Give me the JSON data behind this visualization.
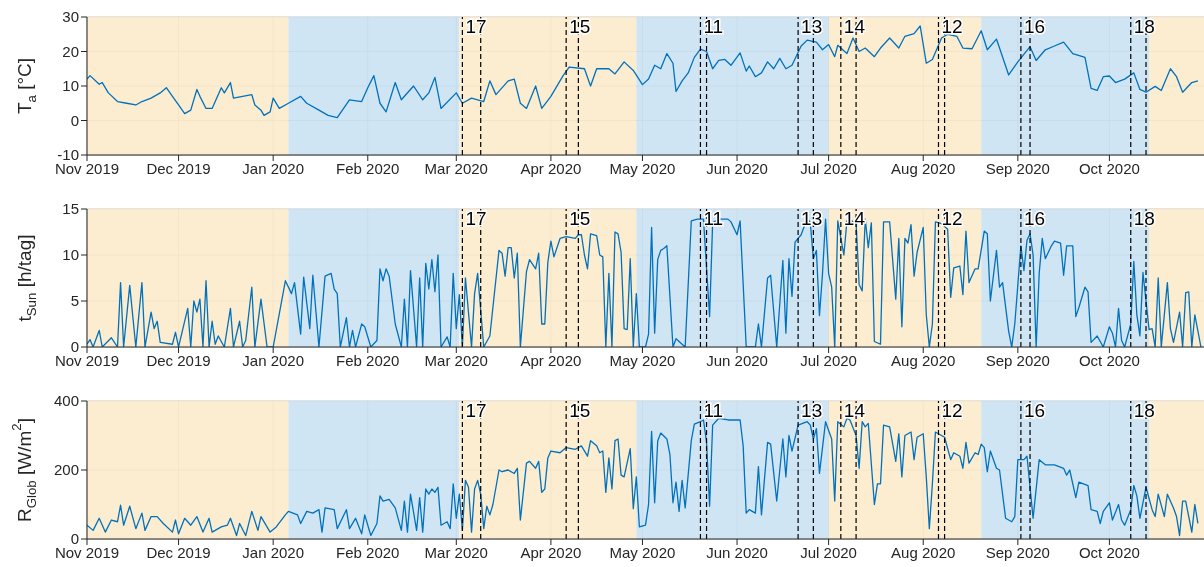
{
  "chart_data": [
    {
      "type": "line",
      "ylabel": "T$_{a}$ [°C]",
      "color": "#0072bd",
      "grid": true,
      "ylim": [
        -10,
        30
      ],
      "yticks": [
        -10,
        0,
        10,
        20,
        30
      ],
      "xlim": [
        "2019-11-01",
        "2020-11-01"
      ],
      "xticks": [
        {
          "value": "2019-11-01",
          "label": "Nov 2019"
        },
        {
          "value": "2019-12-01",
          "label": "Dec 2019"
        },
        {
          "value": "2020-01-01",
          "label": "Jan 2020"
        },
        {
          "value": "2020-02-01",
          "label": "Feb 2020"
        },
        {
          "value": "2020-03-01",
          "label": "Mar 2020"
        },
        {
          "value": "2020-04-01",
          "label": "Apr 2020"
        },
        {
          "value": "2020-05-01",
          "label": "May 2020"
        },
        {
          "value": "2020-06-01",
          "label": "Jun 2020"
        },
        {
          "value": "2020-07-01",
          "label": "Jul 2020"
        },
        {
          "value": "2020-08-01",
          "label": "Aug 2020"
        },
        {
          "value": "2020-09-01",
          "label": "Sep 2020"
        },
        {
          "value": "2020-10-01",
          "label": "Oct 2020"
        }
      ],
      "bands": [
        {
          "axis": "x",
          "from": "2019-11-01",
          "to": "2020-01-06",
          "color": "#fbe9c8"
        },
        {
          "axis": "x",
          "from": "2020-01-06",
          "to": "2020-03-02",
          "color": "#c8e0f2"
        },
        {
          "axis": "x",
          "from": "2020-03-02",
          "to": "2020-04-29",
          "color": "#fbe9c8"
        },
        {
          "axis": "x",
          "from": "2020-04-29",
          "to": "2020-07-01",
          "color": "#c8e0f2"
        },
        {
          "axis": "x",
          "from": "2020-07-01",
          "to": "2020-08-20",
          "color": "#fbe9c8"
        },
        {
          "axis": "x",
          "from": "2020-08-20",
          "to": "2020-10-14",
          "color": "#c8e0f2"
        },
        {
          "axis": "x",
          "from": "2020-10-14",
          "to": "2020-11-01",
          "color": "#fbe9c8"
        }
      ],
      "ref_lines": [
        {
          "axis": "x",
          "value": "2020-03-03",
          "label": "17",
          "line_style": "dashed"
        },
        {
          "axis": "x",
          "value": "2020-03-09",
          "line_style": "dashed"
        },
        {
          "axis": "x",
          "value": "2020-04-06",
          "label": "15",
          "line_style": "dashed"
        },
        {
          "axis": "x",
          "value": "2020-04-10",
          "line_style": "dashed"
        },
        {
          "axis": "x",
          "value": "2020-05-20",
          "label": "11",
          "line_style": "dashed"
        },
        {
          "axis": "x",
          "value": "2020-05-22",
          "line_style": "dashed"
        },
        {
          "axis": "x",
          "value": "2020-06-21",
          "label": "13",
          "line_style": "dashed"
        },
        {
          "axis": "x",
          "value": "2020-06-26",
          "line_style": "dashed"
        },
        {
          "axis": "x",
          "value": "2020-07-05",
          "label": "14",
          "line_style": "dashed"
        },
        {
          "axis": "x",
          "value": "2020-07-10",
          "line_style": "dashed"
        },
        {
          "axis": "x",
          "value": "2020-08-06",
          "label": "12",
          "line_style": "dashed"
        },
        {
          "axis": "x",
          "value": "2020-08-08",
          "line_style": "dashed"
        },
        {
          "axis": "x",
          "value": "2020-09-02",
          "label": "16",
          "line_style": "dashed"
        },
        {
          "axis": "x",
          "value": "2020-09-05",
          "line_style": "dashed"
        },
        {
          "axis": "x",
          "value": "2020-10-08",
          "label": "18",
          "line_style": "dashed"
        },
        {
          "axis": "x",
          "value": "2020-10-13",
          "line_style": "dashed"
        }
      ],
      "x": [
        "2019-11-01",
        "2019-11-02",
        "2019-11-05",
        "2019-11-06",
        "2019-11-08",
        "2019-11-11",
        "2019-11-14",
        "2019-11-17",
        "2019-11-19",
        "2019-11-22",
        "2019-11-25",
        "2019-11-27",
        "2019-11-29",
        "2019-12-01",
        "2019-12-03",
        "2019-12-05",
        "2019-12-07",
        "2019-12-08",
        "2019-12-10",
        "2019-12-12",
        "2019-12-15",
        "2019-12-16",
        "2019-12-18",
        "2019-12-19",
        "2019-12-22",
        "2019-12-25",
        "2019-12-26",
        "2019-12-28",
        "2019-12-29",
        "2019-12-31",
        "2020-01-01",
        "2020-01-03",
        "2020-01-06",
        "2020-01-10",
        "2020-01-12",
        "2020-01-16",
        "2020-01-19",
        "2020-01-22",
        "2020-01-26",
        "2020-01-30",
        "2020-02-01",
        "2020-02-03",
        "2020-02-05",
        "2020-02-07",
        "2020-02-10",
        "2020-02-12",
        "2020-02-16",
        "2020-02-19",
        "2020-02-21",
        "2020-02-23",
        "2020-02-25",
        "2020-03-01",
        "2020-03-03",
        "2020-03-06",
        "2020-03-10",
        "2020-03-12",
        "2020-03-14",
        "2020-03-18",
        "2020-03-20",
        "2020-03-22",
        "2020-03-24",
        "2020-03-27",
        "2020-03-29",
        "2020-04-01",
        "2020-04-05",
        "2020-04-07",
        "2020-04-12",
        "2020-04-14",
        "2020-04-16",
        "2020-04-20",
        "2020-04-22",
        "2020-04-25",
        "2020-04-28",
        "2020-05-01",
        "2020-05-03",
        "2020-05-05",
        "2020-05-07",
        "2020-05-09",
        "2020-05-11",
        "2020-05-12",
        "2020-05-14",
        "2020-05-16",
        "2020-05-18",
        "2020-05-20",
        "2020-05-22",
        "2020-05-24",
        "2020-05-26",
        "2020-05-28",
        "2020-05-30",
        "2020-06-02",
        "2020-06-04",
        "2020-06-05",
        "2020-06-07",
        "2020-06-09",
        "2020-06-11",
        "2020-06-13",
        "2020-06-15",
        "2020-06-17",
        "2020-06-19",
        "2020-06-22",
        "2020-06-24",
        "2020-06-27",
        "2020-06-29",
        "2020-07-01",
        "2020-07-03",
        "2020-07-04",
        "2020-07-07",
        "2020-07-09",
        "2020-07-11",
        "2020-07-13",
        "2020-07-16",
        "2020-07-18",
        "2020-07-21",
        "2020-07-24",
        "2020-07-26",
        "2020-07-29",
        "2020-07-31",
        "2020-08-02",
        "2020-08-04",
        "2020-08-07",
        "2020-08-09",
        "2020-08-12",
        "2020-08-14",
        "2020-08-17",
        "2020-08-20",
        "2020-08-22",
        "2020-08-25",
        "2020-08-29",
        "2020-09-01",
        "2020-09-05",
        "2020-09-07",
        "2020-09-10",
        "2020-09-13",
        "2020-09-16",
        "2020-09-19",
        "2020-09-23",
        "2020-09-25",
        "2020-09-27",
        "2020-09-29",
        "2020-10-01",
        "2020-10-03",
        "2020-10-06",
        "2020-10-09",
        "2020-10-11",
        "2020-10-13",
        "2020-10-16",
        "2020-10-18",
        "2020-10-21",
        "2020-10-23",
        "2020-10-25",
        "2020-10-28",
        "2020-10-30"
      ],
      "values": [
        12,
        13,
        10.5,
        11,
        8,
        5.5,
        5,
        4.5,
        5.5,
        6.5,
        8,
        9.5,
        7,
        4.5,
        2,
        3,
        9,
        7,
        3.5,
        3.5,
        9.5,
        8,
        11,
        6.5,
        7,
        7.5,
        4.5,
        3,
        1.5,
        2.5,
        6.5,
        3.5,
        5,
        7,
        5,
        3,
        1.5,
        0.8,
        6,
        5.5,
        9.5,
        13,
        5,
        2.5,
        11,
        6,
        10,
        6,
        8,
        12.5,
        3.5,
        8,
        5,
        6.5,
        5.5,
        11.5,
        7.5,
        11.5,
        12,
        5,
        3.5,
        10,
        3.5,
        7,
        13,
        15.5,
        15,
        10,
        15,
        15,
        13.5,
        17,
        14.5,
        10.4,
        12,
        16,
        15,
        19.4,
        16.6,
        8.4,
        11.5,
        13.8,
        18.3,
        20.7,
        20,
        15,
        17.4,
        17.7,
        16,
        19.6,
        14.3,
        15.8,
        12.7,
        13.8,
        17,
        15,
        18,
        15,
        16,
        21.6,
        23.3,
        22.7,
        20.5,
        22,
        18.5,
        21.8,
        19.4,
        23.9,
        20,
        21,
        18.5,
        21,
        23.9,
        21,
        24.4,
        25.2,
        27.4,
        16.6,
        17.7,
        23.9,
        25,
        24.4,
        21,
        20.8,
        26,
        20.5,
        23.6,
        13.2,
        17,
        21.4,
        17.4,
        20.5,
        21.6,
        22.7,
        19.4,
        18.3,
        9.3,
        8.7,
        12.7,
        12.9,
        11,
        12,
        13.8,
        9,
        8.2,
        9.9,
        8.7,
        15,
        12.7,
        8.2,
        11,
        11.5
      ]
    },
    {
      "type": "line",
      "ylabel": "t$_{Sun}$ [h/tag]",
      "color": "#0072bd",
      "grid": true,
      "ylim": [
        0,
        15
      ],
      "yticks": [
        0,
        5,
        10,
        15
      ],
      "xlim": [
        "2019-11-01",
        "2020-11-01"
      ],
      "xticks": [
        {
          "value": "2019-11-01",
          "label": "Nov 2019"
        },
        {
          "value": "2019-12-01",
          "label": "Dec 2019"
        },
        {
          "value": "2020-01-01",
          "label": "Jan 2020"
        },
        {
          "value": "2020-02-01",
          "label": "Feb 2020"
        },
        {
          "value": "2020-03-01",
          "label": "Mar 2020"
        },
        {
          "value": "2020-04-01",
          "label": "Apr 2020"
        },
        {
          "value": "2020-05-01",
          "label": "May 2020"
        },
        {
          "value": "2020-06-01",
          "label": "Jun 2020"
        },
        {
          "value": "2020-07-01",
          "label": "Jul 2020"
        },
        {
          "value": "2020-08-01",
          "label": "Aug 2020"
        },
        {
          "value": "2020-09-01",
          "label": "Sep 2020"
        },
        {
          "value": "2020-10-01",
          "label": "Oct 2020"
        }
      ],
      "bands": [
        {
          "axis": "x",
          "from": "2019-11-01",
          "to": "2020-01-06",
          "color": "#fbe9c8"
        },
        {
          "axis": "x",
          "from": "2020-01-06",
          "to": "2020-03-02",
          "color": "#c8e0f2"
        },
        {
          "axis": "x",
          "from": "2020-03-02",
          "to": "2020-04-29",
          "color": "#fbe9c8"
        },
        {
          "axis": "x",
          "from": "2020-04-29",
          "to": "2020-07-01",
          "color": "#c8e0f2"
        },
        {
          "axis": "x",
          "from": "2020-07-01",
          "to": "2020-08-20",
          "color": "#fbe9c8"
        },
        {
          "axis": "x",
          "from": "2020-08-20",
          "to": "2020-10-14",
          "color": "#c8e0f2"
        },
        {
          "axis": "x",
          "from": "2020-10-14",
          "to": "2020-11-01",
          "color": "#fbe9c8"
        }
      ],
      "ref_lines": [
        {
          "axis": "x",
          "value": "2020-03-03",
          "label": "17",
          "line_style": "dashed"
        },
        {
          "axis": "x",
          "value": "2020-03-09",
          "line_style": "dashed"
        },
        {
          "axis": "x",
          "value": "2020-04-06",
          "label": "15",
          "line_style": "dashed"
        },
        {
          "axis": "x",
          "value": "2020-04-10",
          "line_style": "dashed"
        },
        {
          "axis": "x",
          "value": "2020-05-20",
          "label": "11",
          "line_style": "dashed"
        },
        {
          "axis": "x",
          "value": "2020-05-22",
          "line_style": "dashed"
        },
        {
          "axis": "x",
          "value": "2020-06-21",
          "label": "13",
          "line_style": "dashed"
        },
        {
          "axis": "x",
          "value": "2020-06-26",
          "line_style": "dashed"
        },
        {
          "axis": "x",
          "value": "2020-07-05",
          "label": "14",
          "line_style": "dashed"
        },
        {
          "axis": "x",
          "value": "2020-07-10",
          "line_style": "dashed"
        },
        {
          "axis": "x",
          "value": "2020-08-06",
          "label": "12",
          "line_style": "dashed"
        },
        {
          "axis": "x",
          "value": "2020-08-08",
          "line_style": "dashed"
        },
        {
          "axis": "x",
          "value": "2020-09-02",
          "label": "16",
          "line_style": "dashed"
        },
        {
          "axis": "x",
          "value": "2020-09-05",
          "line_style": "dashed"
        },
        {
          "axis": "x",
          "value": "2020-10-08",
          "label": "18",
          "line_style": "dashed"
        },
        {
          "axis": "x",
          "value": "2020-10-13",
          "line_style": "dashed"
        }
      ],
      "x": [
        "2019-11-01",
        "2019-11-02",
        "2019-11-03",
        "2019-11-05",
        "2019-11-06",
        "2019-11-09",
        "2019-11-11",
        "2019-11-12",
        "2019-11-13",
        "2019-11-15",
        "2019-11-17",
        "2019-11-19",
        "2019-11-20",
        "2019-11-22",
        "2019-11-23",
        "2019-11-24",
        "2019-11-25",
        "2019-11-29",
        "2019-11-30",
        "2019-12-01",
        "2019-12-04",
        "2019-12-05",
        "2019-12-06",
        "2019-12-07",
        "2019-12-08",
        "2019-12-09",
        "2019-12-10",
        "2019-12-11",
        "2019-12-12",
        "2019-12-13",
        "2019-12-14",
        "2019-12-16",
        "2019-12-18",
        "2019-12-19",
        "2019-12-21",
        "2019-12-22",
        "2019-12-23",
        "2019-12-25",
        "2019-12-26",
        "2019-12-28",
        "2019-12-30",
        "2020-01-01",
        "2020-01-05",
        "2020-01-07",
        "2020-01-08",
        "2020-01-10",
        "2020-01-11",
        "2020-01-13",
        "2020-01-14",
        "2020-01-16",
        "2020-01-18",
        "2020-01-20",
        "2020-01-21",
        "2020-01-22",
        "2020-01-23",
        "2020-01-25",
        "2020-01-26",
        "2020-01-27",
        "2020-01-28",
        "2020-01-30",
        "2020-01-31",
        "2020-02-02",
        "2020-02-04",
        "2020-02-05",
        "2020-02-06",
        "2020-02-07",
        "2020-02-08",
        "2020-02-10",
        "2020-02-12",
        "2020-02-13",
        "2020-02-14",
        "2020-02-15",
        "2020-02-17",
        "2020-02-18",
        "2020-02-19",
        "2020-02-20",
        "2020-02-21",
        "2020-02-22",
        "2020-02-23",
        "2020-02-24",
        "2020-02-25",
        "2020-02-27",
        "2020-02-28",
        "2020-02-29",
        "2020-03-01",
        "2020-03-02",
        "2020-03-03",
        "2020-03-04",
        "2020-03-06",
        "2020-03-07",
        "2020-03-08",
        "2020-03-10",
        "2020-03-12",
        "2020-03-15",
        "2020-03-16",
        "2020-03-17",
        "2020-03-18",
        "2020-03-19",
        "2020-03-20",
        "2020-03-21",
        "2020-03-22",
        "2020-03-24",
        "2020-03-25",
        "2020-03-27",
        "2020-03-28",
        "2020-03-29",
        "2020-03-30",
        "2020-03-31",
        "2020-04-01",
        "2020-04-02",
        "2020-04-04",
        "2020-04-06",
        "2020-04-09",
        "2020-04-10",
        "2020-04-11",
        "2020-04-12",
        "2020-04-13",
        "2020-04-14",
        "2020-04-16",
        "2020-04-17",
        "2020-04-18",
        "2020-04-19",
        "2020-04-20",
        "2020-04-21",
        "2020-04-22",
        "2020-04-23",
        "2020-04-24",
        "2020-04-25",
        "2020-04-26",
        "2020-04-27",
        "2020-04-28",
        "2020-04-29",
        "2020-04-30",
        "2020-05-02",
        "2020-05-03",
        "2020-05-04",
        "2020-05-05",
        "2020-05-06",
        "2020-05-07",
        "2020-05-08",
        "2020-05-09",
        "2020-05-11",
        "2020-05-12",
        "2020-05-15",
        "2020-05-17",
        "2020-05-19",
        "2020-05-21",
        "2020-05-23",
        "2020-05-24",
        "2020-05-26",
        "2020-05-29",
        "2020-05-30",
        "2020-06-01",
        "2020-06-02",
        "2020-06-04",
        "2020-06-07",
        "2020-06-08",
        "2020-06-09",
        "2020-06-11",
        "2020-06-12",
        "2020-06-14",
        "2020-06-16",
        "2020-06-17",
        "2020-06-18",
        "2020-06-19",
        "2020-06-20",
        "2020-06-22",
        "2020-06-24",
        "2020-06-25",
        "2020-06-26",
        "2020-06-27",
        "2020-06-28",
        "2020-06-29",
        "2020-06-30",
        "2020-07-01",
        "2020-07-02",
        "2020-07-03",
        "2020-07-04",
        "2020-07-06",
        "2020-07-07",
        "2020-07-08",
        "2020-07-10",
        "2020-07-11",
        "2020-07-12",
        "2020-07-13",
        "2020-07-14",
        "2020-07-15",
        "2020-07-16",
        "2020-07-18",
        "2020-07-19",
        "2020-07-21",
        "2020-07-23",
        "2020-07-24",
        "2020-07-25",
        "2020-07-26",
        "2020-07-27",
        "2020-07-28",
        "2020-07-29",
        "2020-07-30",
        "2020-08-01",
        "2020-08-02",
        "2020-08-03",
        "2020-08-04",
        "2020-08-05",
        "2020-08-07",
        "2020-08-09",
        "2020-08-10",
        "2020-08-11",
        "2020-08-13",
        "2020-08-14",
        "2020-08-15",
        "2020-08-16",
        "2020-08-18",
        "2020-08-19",
        "2020-08-21",
        "2020-08-22",
        "2020-08-23",
        "2020-08-25",
        "2020-08-26",
        "2020-08-27",
        "2020-08-29",
        "2020-08-30",
        "2020-08-31",
        "2020-09-02",
        "2020-09-03",
        "2020-09-04",
        "2020-09-05",
        "2020-09-06",
        "2020-09-07",
        "2020-09-08",
        "2020-09-09",
        "2020-09-10",
        "2020-09-12",
        "2020-09-13",
        "2020-09-15",
        "2020-09-16",
        "2020-09-17",
        "2020-09-19",
        "2020-09-20",
        "2020-09-21",
        "2020-09-23",
        "2020-09-24",
        "2020-09-25",
        "2020-09-27",
        "2020-09-29",
        "2020-10-01",
        "2020-10-02",
        "2020-10-03",
        "2020-10-04",
        "2020-10-05",
        "2020-10-06",
        "2020-10-08",
        "2020-10-09",
        "2020-10-10",
        "2020-10-11",
        "2020-10-12",
        "2020-10-14",
        "2020-10-15",
        "2020-10-16",
        "2020-10-17",
        "2020-10-18",
        "2020-10-20",
        "2020-10-21",
        "2020-10-22",
        "2020-10-24",
        "2020-10-25",
        "2020-10-26",
        "2020-10-27",
        "2020-10-28",
        "2020-10-29",
        "2020-10-31"
      ],
      "values": [
        0.3,
        0.8,
        0,
        1.8,
        0,
        1,
        0,
        7,
        0,
        6.7,
        0,
        7,
        0,
        3.8,
        2,
        2.8,
        0.5,
        0.3,
        1.6,
        0,
        4.2,
        0,
        5,
        3.8,
        5.2,
        0,
        7.2,
        0,
        2.8,
        0.3,
        1.2,
        0,
        4.2,
        0,
        2.8,
        0,
        0.7,
        6.5,
        0,
        5.2,
        0,
        0,
        7.2,
        5.8,
        7,
        1.4,
        7.6,
        2,
        7.8,
        0,
        7.7,
        8,
        6.3,
        5.8,
        0,
        3.2,
        0,
        1.8,
        0,
        2.5,
        2.2,
        0,
        0.7,
        8.5,
        7.2,
        8.5,
        7.7,
        2.5,
        0,
        5.2,
        0,
        8.3,
        0,
        7.5,
        0,
        9.1,
        6.3,
        9.5,
        6,
        10,
        0,
        1.1,
        0,
        8,
        2,
        5.7,
        0,
        7.5,
        0,
        5.8,
        8,
        0,
        1.2,
        10.5,
        10.2,
        7.7,
        10.8,
        10.8,
        7.5,
        10.2,
        0,
        8.2,
        9.5,
        8.5,
        10.2,
        2.5,
        2.5,
        9.2,
        11.5,
        9.8,
        11.8,
        12,
        11.8,
        12.2,
        12.2,
        10,
        8.5,
        12.3,
        12.1,
        10,
        9.8,
        0,
        8,
        0,
        12.5,
        12.3,
        10.3,
        2,
        1.9,
        9.6,
        0,
        5.8,
        0,
        0,
        1.4,
        13,
        1.5,
        9.5,
        10.5,
        10.7,
        11,
        0,
        0.9,
        0,
        13.7,
        13.9,
        13.9,
        3.3,
        13.5,
        13.9,
        13.9,
        13.6,
        12.2,
        13.7,
        0,
        0,
        2.5,
        0,
        7.5,
        7.8,
        0,
        9.4,
        1.5,
        9.6,
        5.5,
        11.4,
        12.2,
        14,
        13.5,
        9.6,
        10.5,
        3.4,
        8,
        13.9,
        8,
        6.5,
        0,
        13.7,
        10,
        13.7,
        13.8,
        13.5,
        6.8,
        6.1,
        13.9,
        10.8,
        13.5,
        0.6,
        0.3,
        13.6,
        13.6,
        5.2,
        11.8,
        2.2,
        11.8,
        11.3,
        13.3,
        7.7,
        10.3,
        13,
        3.5,
        0,
        2.5,
        13.6,
        13.4,
        12.8,
        5.4,
        8.6,
        8.8,
        5.7,
        12.6,
        7,
        8.5,
        8.5,
        12.6,
        12.3,
        5,
        10.5,
        6.5,
        7,
        1.7,
        0,
        2.5,
        11,
        8.3,
        11.6,
        12.3,
        10,
        0,
        8,
        11.8,
        9.6,
        11,
        11.5,
        11.3,
        7.8,
        11,
        11,
        3.3,
        4.3,
        6.5,
        6,
        0.5,
        1.2,
        0,
        2.2,
        1.5,
        0,
        4.2,
        0.7,
        0,
        2.5,
        9.3,
        3.5,
        1.2,
        8.1,
        1.9,
        2,
        0,
        7.5,
        0,
        7,
        2,
        0.5,
        3.8,
        0,
        5.9,
        6,
        0,
        3.5,
        0
      ]
    },
    {
      "type": "line",
      "ylabel": "R$_{Glob}$ [W/m$^{2}$]",
      "color": "#0072bd",
      "grid": true,
      "ylim": [
        0,
        400
      ],
      "yticks": [
        0,
        200,
        400
      ],
      "xlim": [
        "2019-11-01",
        "2020-11-01"
      ],
      "xticks": [
        {
          "value": "2019-11-01",
          "label": "Nov 2019"
        },
        {
          "value": "2019-12-01",
          "label": "Dec 2019"
        },
        {
          "value": "2020-01-01",
          "label": "Jan 2020"
        },
        {
          "value": "2020-02-01",
          "label": "Feb 2020"
        },
        {
          "value": "2020-03-01",
          "label": "Mar 2020"
        },
        {
          "value": "2020-04-01",
          "label": "Apr 2020"
        },
        {
          "value": "2020-05-01",
          "label": "May 2020"
        },
        {
          "value": "2020-06-01",
          "label": "Jun 2020"
        },
        {
          "value": "2020-07-01",
          "label": "Jul 2020"
        },
        {
          "value": "2020-08-01",
          "label": "Aug 2020"
        },
        {
          "value": "2020-09-01",
          "label": "Sep 2020"
        },
        {
          "value": "2020-10-01",
          "label": "Oct 2020"
        }
      ],
      "bands": [
        {
          "axis": "x",
          "from": "2019-11-01",
          "to": "2020-01-06",
          "color": "#fbe9c8"
        },
        {
          "axis": "x",
          "from": "2020-01-06",
          "to": "2020-03-02",
          "color": "#c8e0f2"
        },
        {
          "axis": "x",
          "from": "2020-03-02",
          "to": "2020-04-29",
          "color": "#fbe9c8"
        },
        {
          "axis": "x",
          "from": "2020-04-29",
          "to": "2020-07-01",
          "color": "#c8e0f2"
        },
        {
          "axis": "x",
          "from": "2020-07-01",
          "to": "2020-08-20",
          "color": "#fbe9c8"
        },
        {
          "axis": "x",
          "from": "2020-08-20",
          "to": "2020-10-14",
          "color": "#c8e0f2"
        },
        {
          "axis": "x",
          "from": "2020-10-14",
          "to": "2020-11-01",
          "color": "#fbe9c8"
        }
      ],
      "ref_lines": [
        {
          "axis": "x",
          "value": "2020-03-03",
          "label": "17",
          "line_style": "dashed"
        },
        {
          "axis": "x",
          "value": "2020-03-09",
          "line_style": "dashed"
        },
        {
          "axis": "x",
          "value": "2020-04-06",
          "label": "15",
          "line_style": "dashed"
        },
        {
          "axis": "x",
          "value": "2020-04-10",
          "line_style": "dashed"
        },
        {
          "axis": "x",
          "value": "2020-05-20",
          "label": "11",
          "line_style": "dashed"
        },
        {
          "axis": "x",
          "value": "2020-05-22",
          "line_style": "dashed"
        },
        {
          "axis": "x",
          "value": "2020-06-21",
          "label": "13",
          "line_style": "dashed"
        },
        {
          "axis": "x",
          "value": "2020-06-26",
          "line_style": "dashed"
        },
        {
          "axis": "x",
          "value": "2020-07-05",
          "label": "14",
          "line_style": "dashed"
        },
        {
          "axis": "x",
          "value": "2020-07-10",
          "line_style": "dashed"
        },
        {
          "axis": "x",
          "value": "2020-08-06",
          "label": "12",
          "line_style": "dashed"
        },
        {
          "axis": "x",
          "value": "2020-08-08",
          "line_style": "dashed"
        },
        {
          "axis": "x",
          "value": "2020-09-02",
          "label": "16",
          "line_style": "dashed"
        },
        {
          "axis": "x",
          "value": "2020-09-05",
          "line_style": "dashed"
        },
        {
          "axis": "x",
          "value": "2020-10-08",
          "label": "18",
          "line_style": "dashed"
        },
        {
          "axis": "x",
          "value": "2020-10-13",
          "line_style": "dashed"
        }
      ],
      "x": [
        "2019-11-01",
        "2019-11-03",
        "2019-11-05",
        "2019-11-07",
        "2019-11-09",
        "2019-11-11",
        "2019-11-12",
        "2019-11-13",
        "2019-11-15",
        "2019-11-17",
        "2019-11-19",
        "2019-11-20",
        "2019-11-22",
        "2019-11-24",
        "2019-11-26",
        "2019-11-29",
        "2019-11-30",
        "2019-12-01",
        "2019-12-03",
        "2019-12-05",
        "2019-12-07",
        "2019-12-09",
        "2019-12-11",
        "2019-12-12",
        "2019-12-15",
        "2019-12-17",
        "2019-12-18",
        "2019-12-20",
        "2019-12-21",
        "2019-12-23",
        "2019-12-25",
        "2019-12-27",
        "2019-12-28",
        "2019-12-31",
        "2020-01-02",
        "2020-01-05",
        "2020-01-06",
        "2020-01-09",
        "2020-01-10",
        "2020-01-12",
        "2020-01-14",
        "2020-01-16",
        "2020-01-17",
        "2020-01-18",
        "2020-01-21",
        "2020-01-22",
        "2020-01-25",
        "2020-01-26",
        "2020-01-28",
        "2020-01-30",
        "2020-01-31",
        "2020-02-02",
        "2020-02-04",
        "2020-02-05",
        "2020-02-06",
        "2020-02-08",
        "2020-02-10",
        "2020-02-12",
        "2020-02-13",
        "2020-02-14",
        "2020-02-15",
        "2020-02-17",
        "2020-02-18",
        "2020-02-19",
        "2020-02-20",
        "2020-02-21",
        "2020-02-22",
        "2020-02-23",
        "2020-02-24",
        "2020-02-25",
        "2020-02-27",
        "2020-02-28",
        "2020-02-29",
        "2020-03-01",
        "2020-03-02",
        "2020-03-03",
        "2020-03-04",
        "2020-03-05",
        "2020-03-06",
        "2020-03-07",
        "2020-03-08",
        "2020-03-09",
        "2020-03-10",
        "2020-03-11",
        "2020-03-12",
        "2020-03-13",
        "2020-03-15",
        "2020-03-16",
        "2020-03-18",
        "2020-03-20",
        "2020-03-21",
        "2020-03-22",
        "2020-03-24",
        "2020-03-25",
        "2020-03-27",
        "2020-03-28",
        "2020-03-29",
        "2020-03-30",
        "2020-03-31",
        "2020-04-01",
        "2020-04-04",
        "2020-04-06",
        "2020-04-09",
        "2020-04-11",
        "2020-04-13",
        "2020-04-14",
        "2020-04-16",
        "2020-04-17",
        "2020-04-18",
        "2020-04-19",
        "2020-04-20",
        "2020-04-21",
        "2020-04-22",
        "2020-04-23",
        "2020-04-24",
        "2020-04-25",
        "2020-04-27",
        "2020-04-28",
        "2020-04-29",
        "2020-04-30",
        "2020-05-02",
        "2020-05-03",
        "2020-05-04",
        "2020-05-05",
        "2020-05-06",
        "2020-05-07",
        "2020-05-09",
        "2020-05-10",
        "2020-05-11",
        "2020-05-12",
        "2020-05-13",
        "2020-05-14",
        "2020-05-15",
        "2020-05-17",
        "2020-05-18",
        "2020-05-20",
        "2020-05-21",
        "2020-05-22",
        "2020-05-23",
        "2020-05-24",
        "2020-05-26",
        "2020-05-29",
        "2020-05-30",
        "2020-06-02",
        "2020-06-03",
        "2020-06-04",
        "2020-06-05",
        "2020-06-07",
        "2020-06-08",
        "2020-06-09",
        "2020-06-11",
        "2020-06-12",
        "2020-06-14",
        "2020-06-16",
        "2020-06-17",
        "2020-06-18",
        "2020-06-19",
        "2020-06-21",
        "2020-06-24",
        "2020-06-25",
        "2020-06-26",
        "2020-06-27",
        "2020-06-28",
        "2020-06-30",
        "2020-07-02",
        "2020-07-03",
        "2020-07-04",
        "2020-07-06",
        "2020-07-07",
        "2020-07-08",
        "2020-07-10",
        "2020-07-11",
        "2020-07-12",
        "2020-07-13",
        "2020-07-14",
        "2020-07-16",
        "2020-07-17",
        "2020-07-18",
        "2020-07-19",
        "2020-07-21",
        "2020-07-23",
        "2020-07-24",
        "2020-07-25",
        "2020-07-26",
        "2020-07-27",
        "2020-07-28",
        "2020-07-29",
        "2020-07-30",
        "2020-08-01",
        "2020-08-02",
        "2020-08-03",
        "2020-08-04",
        "2020-08-05",
        "2020-08-08",
        "2020-08-10",
        "2020-08-11",
        "2020-08-13",
        "2020-08-14",
        "2020-08-15",
        "2020-08-16",
        "2020-08-18",
        "2020-08-19",
        "2020-08-20",
        "2020-08-21",
        "2020-08-22",
        "2020-08-23",
        "2020-08-25",
        "2020-08-26",
        "2020-08-28",
        "2020-08-30",
        "2020-08-31",
        "2020-09-01",
        "2020-09-03",
        "2020-09-04",
        "2020-09-06",
        "2020-09-08",
        "2020-09-10",
        "2020-09-13",
        "2020-09-16",
        "2020-09-17",
        "2020-09-18",
        "2020-09-20",
        "2020-09-21",
        "2020-09-24",
        "2020-09-25",
        "2020-09-27",
        "2020-09-28",
        "2020-09-29",
        "2020-10-01",
        "2020-10-02",
        "2020-10-04",
        "2020-10-05",
        "2020-10-06",
        "2020-10-08",
        "2020-10-09",
        "2020-10-10",
        "2020-10-11",
        "2020-10-13",
        "2020-10-15",
        "2020-10-16",
        "2020-10-17",
        "2020-10-19",
        "2020-10-20",
        "2020-10-22",
        "2020-10-23",
        "2020-10-24",
        "2020-10-25",
        "2020-10-26",
        "2020-10-28",
        "2020-10-29",
        "2020-10-30"
      ],
      "values": [
        40,
        25,
        60,
        20,
        55,
        50,
        98,
        40,
        95,
        30,
        75,
        25,
        65,
        65,
        45,
        20,
        55,
        15,
        60,
        40,
        65,
        20,
        60,
        20,
        35,
        40,
        60,
        10,
        45,
        10,
        80,
        25,
        65,
        20,
        35,
        70,
        80,
        70,
        45,
        80,
        75,
        85,
        20,
        90,
        85,
        30,
        85,
        30,
        60,
        15,
        70,
        10,
        45,
        125,
        110,
        115,
        90,
        25,
        110,
        20,
        130,
        25,
        120,
        20,
        145,
        130,
        145,
        135,
        150,
        40,
        50,
        30,
        160,
        60,
        130,
        25,
        170,
        150,
        20,
        145,
        170,
        130,
        30,
        95,
        70,
        100,
        200,
        195,
        200,
        190,
        205,
        55,
        220,
        225,
        205,
        225,
        135,
        145,
        235,
        255,
        250,
        265,
        260,
        270,
        240,
        285,
        270,
        250,
        255,
        135,
        235,
        145,
        285,
        290,
        185,
        180,
        262,
        88,
        180,
        35,
        40,
        100,
        312,
        105,
        284,
        307,
        290,
        245,
        105,
        165,
        80,
        170,
        90,
        285,
        333,
        340,
        345,
        280,
        95,
        330,
        350,
        345,
        345,
        345,
        270,
        75,
        85,
        75,
        210,
        70,
        280,
        275,
        110,
        290,
        180,
        300,
        255,
        330,
        340,
        330,
        290,
        320,
        190,
        340,
        290,
        110,
        340,
        325,
        350,
        345,
        300,
        205,
        340,
        325,
        335,
        100,
        160,
        160,
        330,
        325,
        225,
        305,
        180,
        300,
        305,
        310,
        230,
        295,
        305,
        180,
        30,
        160,
        310,
        295,
        230,
        250,
        240,
        205,
        280,
        220,
        250,
        245,
        275,
        265,
        195,
        255,
        205,
        200,
        60,
        50,
        65,
        230,
        230,
        240,
        60,
        230,
        215,
        215,
        205,
        185,
        200,
        120,
        165,
        155,
        85,
        80,
        45,
        80,
        105,
        55,
        100,
        55,
        40,
        85,
        155,
        125,
        60,
        150,
        85,
        65,
        130,
        65,
        130,
        90,
        65,
        10,
        110,
        110,
        20,
        100,
        45
      ]
    }
  ]
}
